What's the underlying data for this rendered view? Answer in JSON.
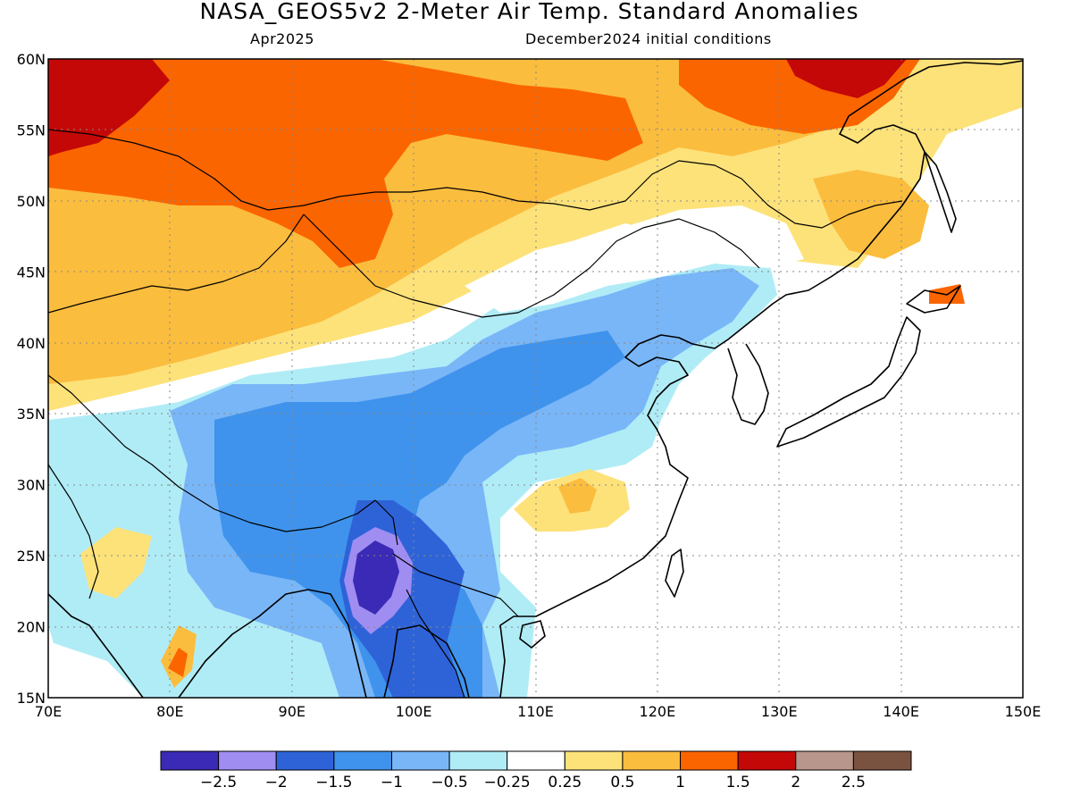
{
  "header": {
    "title": "NASA_GEOS5v2 2-Meter Air Temp. Standard Anomalies",
    "valid_month": "Apr2025",
    "init_conditions": "December2024 initial conditions"
  },
  "map": {
    "lon_range": [
      70,
      150
    ],
    "lat_range": [
      15,
      60
    ],
    "lon_ticks": [
      "70E",
      "80E",
      "90E",
      "100E",
      "110E",
      "120E",
      "130E",
      "140E",
      "150E"
    ],
    "lat_ticks": [
      "15N",
      "20N",
      "25N",
      "30N",
      "35N",
      "40N",
      "45N",
      "50N",
      "55N",
      "60N"
    ],
    "gridlines": "dotted"
  },
  "colorbar": {
    "colors": [
      "#3b2ab5",
      "#a08df2",
      "#2e63d8",
      "#3f93ec",
      "#79b6f7",
      "#b0ecf6",
      "#ffffff",
      "#fde27a",
      "#fbbd3e",
      "#fb6500",
      "#c40808",
      "#b8968c",
      "#7a5240"
    ],
    "labels": [
      "−2.5",
      "−2",
      "−1.5",
      "−1",
      "−0.5",
      "−0.25",
      "0.25",
      "0.5",
      "1",
      "1.5",
      "2",
      "2.5"
    ]
  },
  "chart_data": {
    "type": "heatmap",
    "title": "NASA_GEOS5v2 2-Meter Air Temp. Standard Anomalies",
    "subtitle": [
      "Apr2025",
      "December2024 initial conditions"
    ],
    "x": {
      "label": "",
      "range": [
        70,
        150
      ],
      "ticks": [
        "70E",
        "80E",
        "90E",
        "100E",
        "110E",
        "120E",
        "130E",
        "140E",
        "150E"
      ]
    },
    "y": {
      "label": "",
      "range": [
        15,
        60
      ],
      "ticks": [
        "15N",
        "20N",
        "25N",
        "30N",
        "35N",
        "40N",
        "45N",
        "50N",
        "55N",
        "60N"
      ]
    },
    "color_levels": [
      -2.5,
      -2,
      -1.5,
      -1,
      -0.5,
      -0.25,
      0.25,
      0.5,
      1,
      1.5,
      2,
      2.5
    ],
    "regions": [
      {
        "area": "Western Siberia / Kazakhstan north (70-80E, 55-60N)",
        "anomaly": ">1.5"
      },
      {
        "area": "Southern Siberia / Altai / Mongolia west",
        "anomaly": "1 to 1.5"
      },
      {
        "area": "Eastern Siberia near 125-140E, 57-60N",
        "anomaly": ">1.5"
      },
      {
        "area": "Kazakhstan / Xinjiang / Mongolia",
        "anomaly": "0.5 to 1"
      },
      {
        "area": "Inner Mongolia / NE China / Far East",
        "anomaly": "-0.25 to 0.5"
      },
      {
        "area": "Tibetan Plateau / Central China",
        "anomaly": "-1.5 to -0.5"
      },
      {
        "area": "Myanmar / Yunnan (95-100E, 20-26N)",
        "anomaly": "-2.5 to -2"
      },
      {
        "area": "Indochina (97-105E, 15-22N)",
        "anomaly": "-1.5 to -1"
      },
      {
        "area": "Southeast China (112-118E, 26-31N)",
        "anomaly": "0.25 to 0.5"
      },
      {
        "area": "India / Japan / Korea / Pacific",
        "anomaly": "-0.25 to 0.25"
      }
    ]
  }
}
